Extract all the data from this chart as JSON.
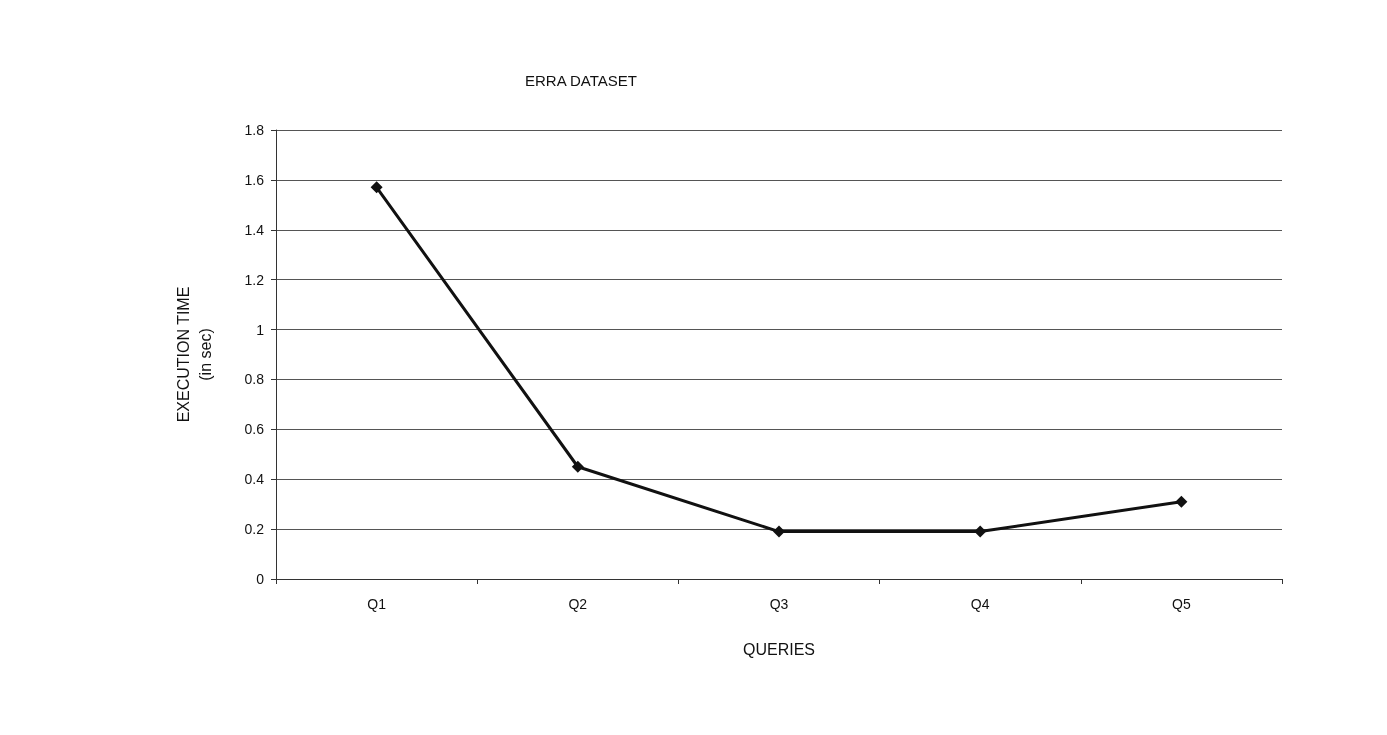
{
  "chart_data": {
    "type": "line",
    "title": "ERRA DATASET",
    "xlabel": "QUERIES",
    "ylabel": "EXECUTION TIME\n(in sec)",
    "categories": [
      "Q1",
      "Q2",
      "Q3",
      "Q4",
      "Q5"
    ],
    "series": [
      {
        "color": "#111111",
        "values": [
          1.57,
          0.45,
          0.19,
          0.19,
          0.31
        ]
      }
    ],
    "ylim": [
      0,
      1.8
    ],
    "yticks": [
      0,
      0.2,
      0.4,
      0.6,
      0.8,
      1,
      1.2,
      1.4,
      1.6,
      1.8
    ],
    "grid": "y",
    "marker": "diamond",
    "line_style": "solid"
  }
}
